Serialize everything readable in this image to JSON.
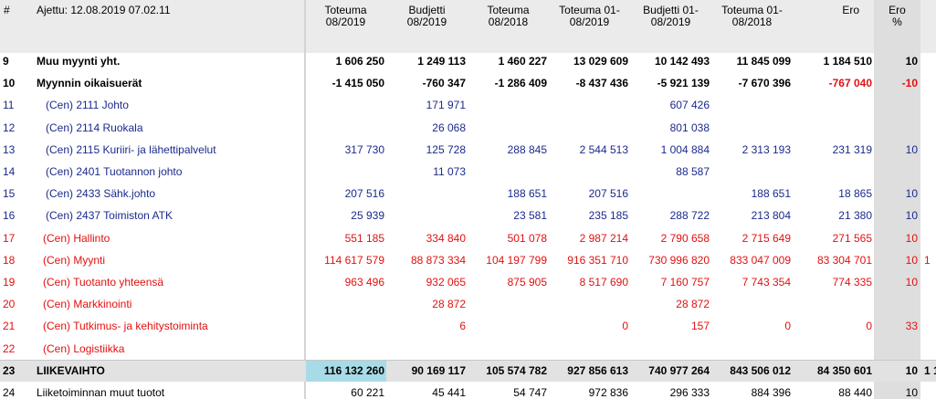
{
  "header": {
    "number": "#",
    "run_info": "Ajettu: 12.08.2019 07.02.11",
    "columns": [
      [
        "Toteuma",
        "08/2019"
      ],
      [
        "Budjetti",
        "08/2019"
      ],
      [
        "Toteuma",
        "08/2018"
      ],
      [
        "Toteuma 01-",
        "08/2019"
      ],
      [
        "Budjetti 01-",
        "08/2019"
      ],
      [
        "Toteuma 01-",
        "08/2018"
      ],
      [
        "Ero"
      ],
      [
        "Ero",
        "%"
      ]
    ]
  },
  "table": {
    "rows": [
      {
        "number": "9",
        "label": "Muu myynti yht.",
        "cells": [
          "1 606 250",
          "1 249 113",
          "1 460 227",
          "13 029 609",
          "10 142 493",
          "11 845 099",
          "1 184 510",
          "10"
        ]
      },
      {
        "number": "10",
        "label": "Myynnin oikaisuerät",
        "cells": [
          "-1 415 050",
          "-760 347",
          "-1 286 409",
          "-8 437 436",
          "-5 921 139",
          "-7 670 396",
          "-767 040",
          "-10"
        ]
      },
      {
        "number": "11",
        "label": "(Cen) 2111 Johto",
        "cells": [
          null,
          "171 971",
          null,
          null,
          "607 426",
          null,
          null,
          null
        ]
      },
      {
        "number": "12",
        "label": "(Cen) 2114 Ruokala",
        "cells": [
          null,
          "26 068",
          null,
          null,
          "801 038",
          null,
          null,
          null
        ]
      },
      {
        "number": "13",
        "label": "(Cen) 2115 Kuriiri- ja lähettipalvelut",
        "cells": [
          "317 730",
          "125 728",
          "288 845",
          "2 544 513",
          "1 004 884",
          "2 313 193",
          "231 319",
          "10"
        ]
      },
      {
        "number": "14",
        "label": "(Cen) 2401 Tuotannon johto",
        "cells": [
          null,
          "11 073",
          null,
          null,
          "88 587",
          null,
          null,
          null
        ]
      },
      {
        "number": "15",
        "label": "(Cen) 2433 Sähk.johto",
        "cells": [
          "207 516",
          null,
          "188 651",
          "207 516",
          null,
          "188 651",
          "18 865",
          "10"
        ]
      },
      {
        "number": "16",
        "label": "(Cen) 2437 Toimiston ATK",
        "cells": [
          "25 939",
          null,
          "23 581",
          "235 185",
          "288 722",
          "213 804",
          "21 380",
          "10"
        ]
      },
      {
        "number": "17",
        "label": "(Cen) Hallinto",
        "cells": [
          "551 185",
          "334 840",
          "501 078",
          "2 987 214",
          "2 790 658",
          "2 715 649",
          "271 565",
          "10"
        ]
      },
      {
        "number": "18",
        "label": "(Cen) Myynti",
        "cells": [
          "114 617 579",
          "88 873 334",
          "104 197 799",
          "916 351 710",
          "730 996 820",
          "833 047 009",
          "83 304 701",
          "10"
        ],
        "tail": "1"
      },
      {
        "number": "19",
        "label": "(Cen) Tuotanto yhteensä",
        "cells": [
          "963 496",
          "932 065",
          "875 905",
          "8 517 690",
          "7 160 757",
          "7 743 354",
          "774 335",
          "10"
        ]
      },
      {
        "number": "20",
        "label": "(Cen) Markkinointi",
        "cells": [
          null,
          "28 872",
          null,
          null,
          "28 872",
          null,
          null,
          null
        ]
      },
      {
        "number": "21",
        "label": "(Cen) Tutkimus- ja kehitystoiminta",
        "cells": [
          null,
          "6",
          null,
          "0",
          "157",
          "0",
          "0",
          "33"
        ]
      },
      {
        "number": "22",
        "label": "(Cen) Logistiikka",
        "cells": [
          null,
          null,
          null,
          null,
          null,
          null,
          null,
          null
        ]
      },
      {
        "number": "23",
        "label": "LIIKEVAIHTO",
        "cells": [
          "116 132 260",
          "90 169 117",
          "105 574 782",
          "927 856 613",
          "740 977 264",
          "843 506 012",
          "84 350 601",
          "10"
        ],
        "tail": "1 1"
      },
      {
        "number": "24",
        "label": "Liiketoiminnan muut tuotot",
        "cells": [
          "60 221",
          "45 441",
          "54 747",
          "972 836",
          "296 333",
          "884 396",
          "88 440",
          "10"
        ]
      }
    ]
  }
}
